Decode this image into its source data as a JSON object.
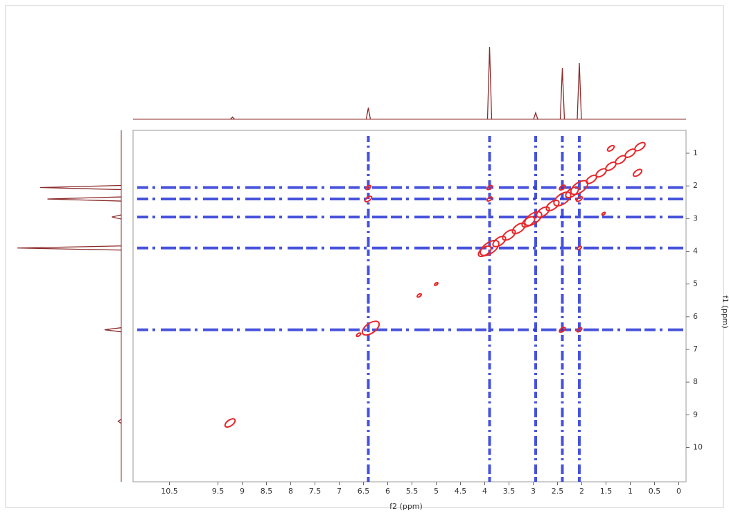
{
  "chart_data": {
    "type": "contour",
    "x_label": "f2 (ppm)",
    "y_label": "f1 (ppm)",
    "xlim": [
      11.25,
      -0.15
    ],
    "ylim": [
      0.3,
      11.05
    ],
    "xticks": [
      10.5,
      9.5,
      9.0,
      8.5,
      8.0,
      7.5,
      7.0,
      6.5,
      6.0,
      5.5,
      5.0,
      4.5,
      4.0,
      3.5,
      3.0,
      2.5,
      2.0,
      1.5,
      1.0,
      0.5,
      0.0
    ],
    "yticks": [
      1,
      2,
      3,
      4,
      5,
      6,
      7,
      8,
      9,
      10
    ],
    "peak_color": "#e8262a",
    "noise_color": "#2634d6",
    "projection_color": "#8b2a2a",
    "projection": {
      "ppm": [
        9.2,
        6.4,
        3.9,
        2.95,
        2.4,
        2.05
      ],
      "intensity": [
        3,
        16,
        100,
        9,
        71,
        78
      ]
    },
    "peaks": {
      "f2": [
        0.8,
        1.0,
        1.2,
        1.4,
        1.6,
        1.8,
        2.05,
        2.2,
        2.4,
        2.6,
        2.8,
        3.0,
        3.1,
        3.3,
        3.5,
        3.7,
        3.9,
        4.0,
        6.35,
        6.6,
        9.25,
        5.35,
        5.0,
        1.4,
        0.85,
        1.55,
        2.4,
        2.05,
        3.9,
        3.9,
        6.4,
        6.4,
        2.4,
        2.05,
        2.05
      ],
      "f1": [
        0.8,
        1.0,
        1.2,
        1.4,
        1.6,
        1.8,
        2.05,
        2.2,
        2.4,
        2.6,
        2.8,
        3.0,
        3.1,
        3.3,
        3.5,
        3.7,
        3.9,
        4.0,
        6.35,
        6.55,
        9.25,
        5.35,
        5.0,
        0.85,
        1.6,
        2.85,
        2.05,
        2.4,
        2.05,
        2.4,
        2.05,
        2.4,
        6.4,
        6.4,
        3.9
      ],
      "width": [
        0.12,
        0.12,
        0.12,
        0.12,
        0.12,
        0.12,
        0.2,
        0.15,
        0.2,
        0.15,
        0.15,
        0.2,
        0.15,
        0.15,
        0.15,
        0.15,
        0.22,
        0.15,
        0.2,
        0.05,
        0.12,
        0.05,
        0.04,
        0.08,
        0.1,
        0.04,
        0.07,
        0.07,
        0.06,
        0.06,
        0.06,
        0.08,
        0.07,
        0.06,
        0.05
      ]
    },
    "noise_f2": [
      6.4,
      3.9,
      2.95,
      2.4,
      2.05
    ],
    "noise_f1": [
      2.05,
      2.4,
      2.95,
      3.9,
      6.4
    ]
  }
}
